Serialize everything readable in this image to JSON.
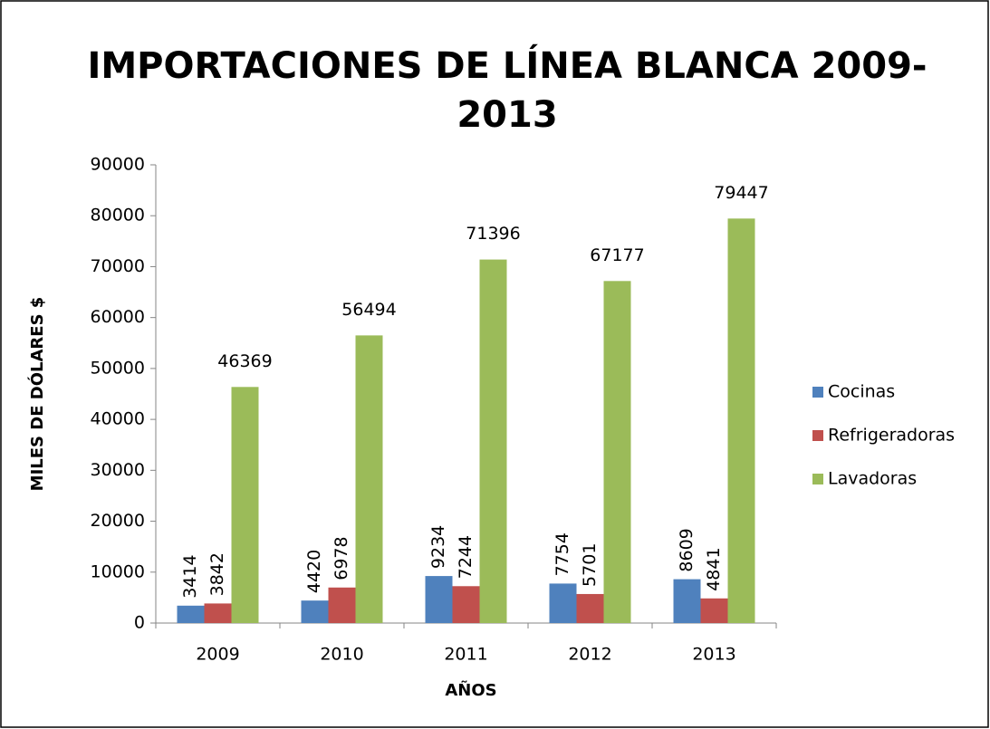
{
  "chart_data": {
    "type": "bar",
    "title": "IMPORTACIONES DE LÍNEA BLANCA 2009-2013",
    "x_label": "AÑOS",
    "y_label": "MILES DE DÓLARES $",
    "categories": [
      "2009",
      "2010",
      "2011",
      "2012",
      "2013"
    ],
    "series": [
      {
        "name": "Cocinas",
        "color": "#4f81bd",
        "values": [
          3414,
          4420,
          9234,
          7754,
          8609
        ]
      },
      {
        "name": "Refrigeradoras",
        "color": "#c0504d",
        "values": [
          3842,
          6978,
          7244,
          5701,
          4841
        ]
      },
      {
        "name": "Lavadoras",
        "color": "#9bbb59",
        "values": [
          46369,
          56494,
          71396,
          67177,
          79447
        ]
      }
    ],
    "ylim": [
      0,
      90000
    ],
    "yticks": [
      0,
      10000,
      20000,
      30000,
      40000,
      50000,
      60000,
      70000,
      80000,
      90000
    ],
    "grid": false,
    "legend": "right"
  }
}
